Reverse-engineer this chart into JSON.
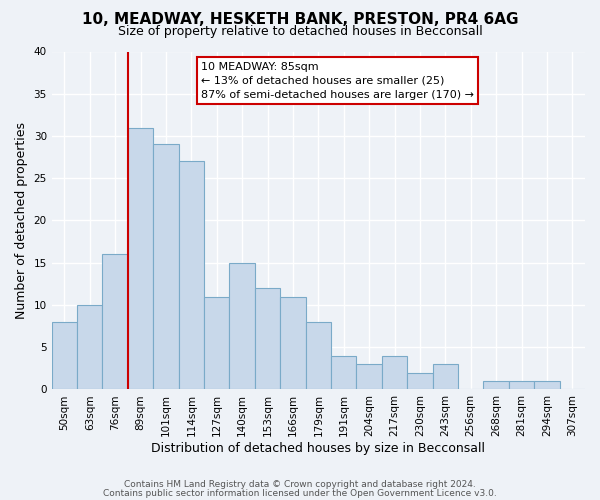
{
  "title": "10, MEADWAY, HESKETH BANK, PRESTON, PR4 6AG",
  "subtitle": "Size of property relative to detached houses in Becconsall",
  "xlabel": "Distribution of detached houses by size in Becconsall",
  "ylabel": "Number of detached properties",
  "footer_line1": "Contains HM Land Registry data © Crown copyright and database right 2024.",
  "footer_line2": "Contains public sector information licensed under the Open Government Licence v3.0.",
  "bin_labels": [
    "50sqm",
    "63sqm",
    "76sqm",
    "89sqm",
    "101sqm",
    "114sqm",
    "127sqm",
    "140sqm",
    "153sqm",
    "166sqm",
    "179sqm",
    "191sqm",
    "204sqm",
    "217sqm",
    "230sqm",
    "243sqm",
    "256sqm",
    "268sqm",
    "281sqm",
    "294sqm",
    "307sqm"
  ],
  "bar_heights": [
    8,
    10,
    16,
    31,
    29,
    27,
    11,
    15,
    12,
    11,
    8,
    4,
    3,
    4,
    2,
    3,
    0,
    1,
    1,
    1,
    0
  ],
  "bar_color": "#c8d8ea",
  "bar_edge_color": "#7aaac8",
  "ylim": [
    0,
    40
  ],
  "yticks": [
    0,
    5,
    10,
    15,
    20,
    25,
    30,
    35,
    40
  ],
  "annotation_title": "10 MEADWAY: 85sqm",
  "annotation_line1": "← 13% of detached houses are smaller (25)",
  "annotation_line2": "87% of semi-detached houses are larger (170) →",
  "annotation_box_color": "#ffffff",
  "annotation_box_edge_color": "#cc0000",
  "vline_color": "#cc0000",
  "background_color": "#eef2f7",
  "plot_background": "#eef2f7",
  "grid_color": "#ffffff",
  "title_fontsize": 11,
  "subtitle_fontsize": 9
}
